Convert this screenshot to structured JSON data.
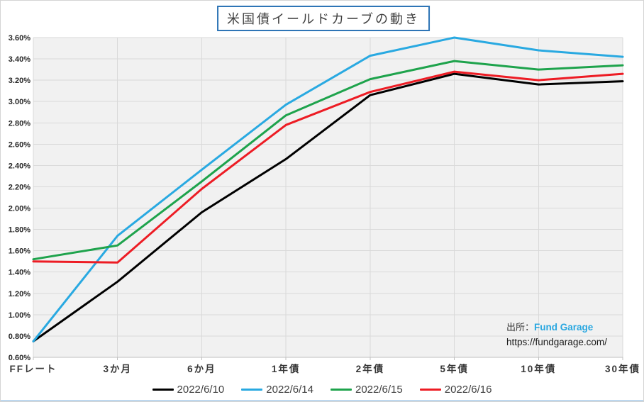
{
  "title": "米国債イールドカーブの動き",
  "source": {
    "prefix": "出所：",
    "name": "Fund Garage",
    "url": "https://fundgarage.com/"
  },
  "colors": {
    "title_border": "#2e75b6",
    "link_blue": "#29a7e0",
    "plot_bg": "#f1f1f1",
    "gridline": "#d9d9d9",
    "axis_line": "#bfbfbf",
    "frame_bottom": "#bdd7ee"
  },
  "chart_data": {
    "type": "line",
    "title": "米国債イールドカーブの動き",
    "categories": [
      "FFレート",
      "3か月",
      "6か月",
      "1年債",
      "2年債",
      "5年債",
      "10年債",
      "30年債"
    ],
    "series": [
      {
        "name": "2022/6/10",
        "color": "#000000",
        "values": [
          0.75,
          1.31,
          1.96,
          2.46,
          3.06,
          3.26,
          3.16,
          3.19
        ]
      },
      {
        "name": "2022/6/14",
        "color": "#29a9e1",
        "values": [
          0.75,
          1.74,
          2.36,
          2.97,
          3.43,
          3.6,
          3.48,
          3.42
        ]
      },
      {
        "name": "2022/6/15",
        "color": "#1ea34c",
        "values": [
          1.52,
          1.65,
          2.25,
          2.87,
          3.21,
          3.38,
          3.3,
          3.34
        ]
      },
      {
        "name": "2022/6/16",
        "color": "#ed1c24",
        "values": [
          1.5,
          1.49,
          2.18,
          2.78,
          3.09,
          3.28,
          3.2,
          3.26
        ]
      }
    ],
    "ylim": [
      0.6,
      3.6
    ],
    "ytick_step": 0.2,
    "y_tick_labels": [
      "3.60%",
      "3.40%",
      "3.20%",
      "3.00%",
      "2.80%",
      "2.60%",
      "2.40%",
      "2.20%",
      "2.00%",
      "1.80%",
      "1.60%",
      "1.40%",
      "1.20%",
      "1.00%",
      "0.80%",
      "0.60%"
    ],
    "xlabel": "",
    "ylabel": "",
    "grid": true,
    "legend_position": "bottom"
  }
}
